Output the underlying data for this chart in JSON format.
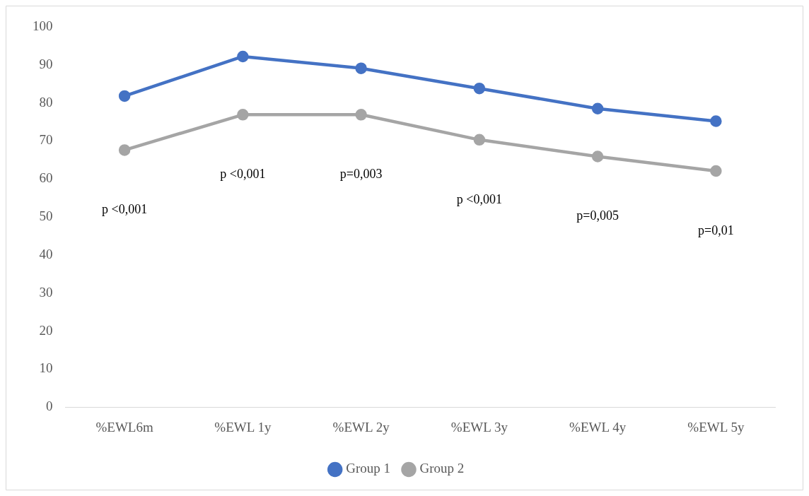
{
  "chart_data": {
    "type": "line",
    "categories": [
      "%EWL6m",
      "%EWL 1y",
      "%EWL 2y",
      "%EWL 3y",
      "%EWL 4y",
      "%EWL 5y"
    ],
    "series": [
      {
        "name": "Group 1",
        "color": "#4472c4",
        "values": [
          81.8,
          92.2,
          89.1,
          83.8,
          78.5,
          75.2
        ]
      },
      {
        "name": "Group 2",
        "color": "#a5a5a5",
        "values": [
          67.6,
          76.9,
          76.9,
          70.3,
          65.9,
          62.1
        ]
      }
    ],
    "ylim": [
      0,
      100
    ],
    "yticks": [
      0,
      10,
      20,
      30,
      40,
      50,
      60,
      70,
      80,
      90,
      100
    ],
    "grid": false,
    "legend": "bottom",
    "marker": "circle",
    "line_style": "solid",
    "annotations": [
      "p <0,001",
      "p <0,001",
      "p=0,003",
      "p <0,001",
      "p=0,005",
      "p=0,01"
    ]
  }
}
